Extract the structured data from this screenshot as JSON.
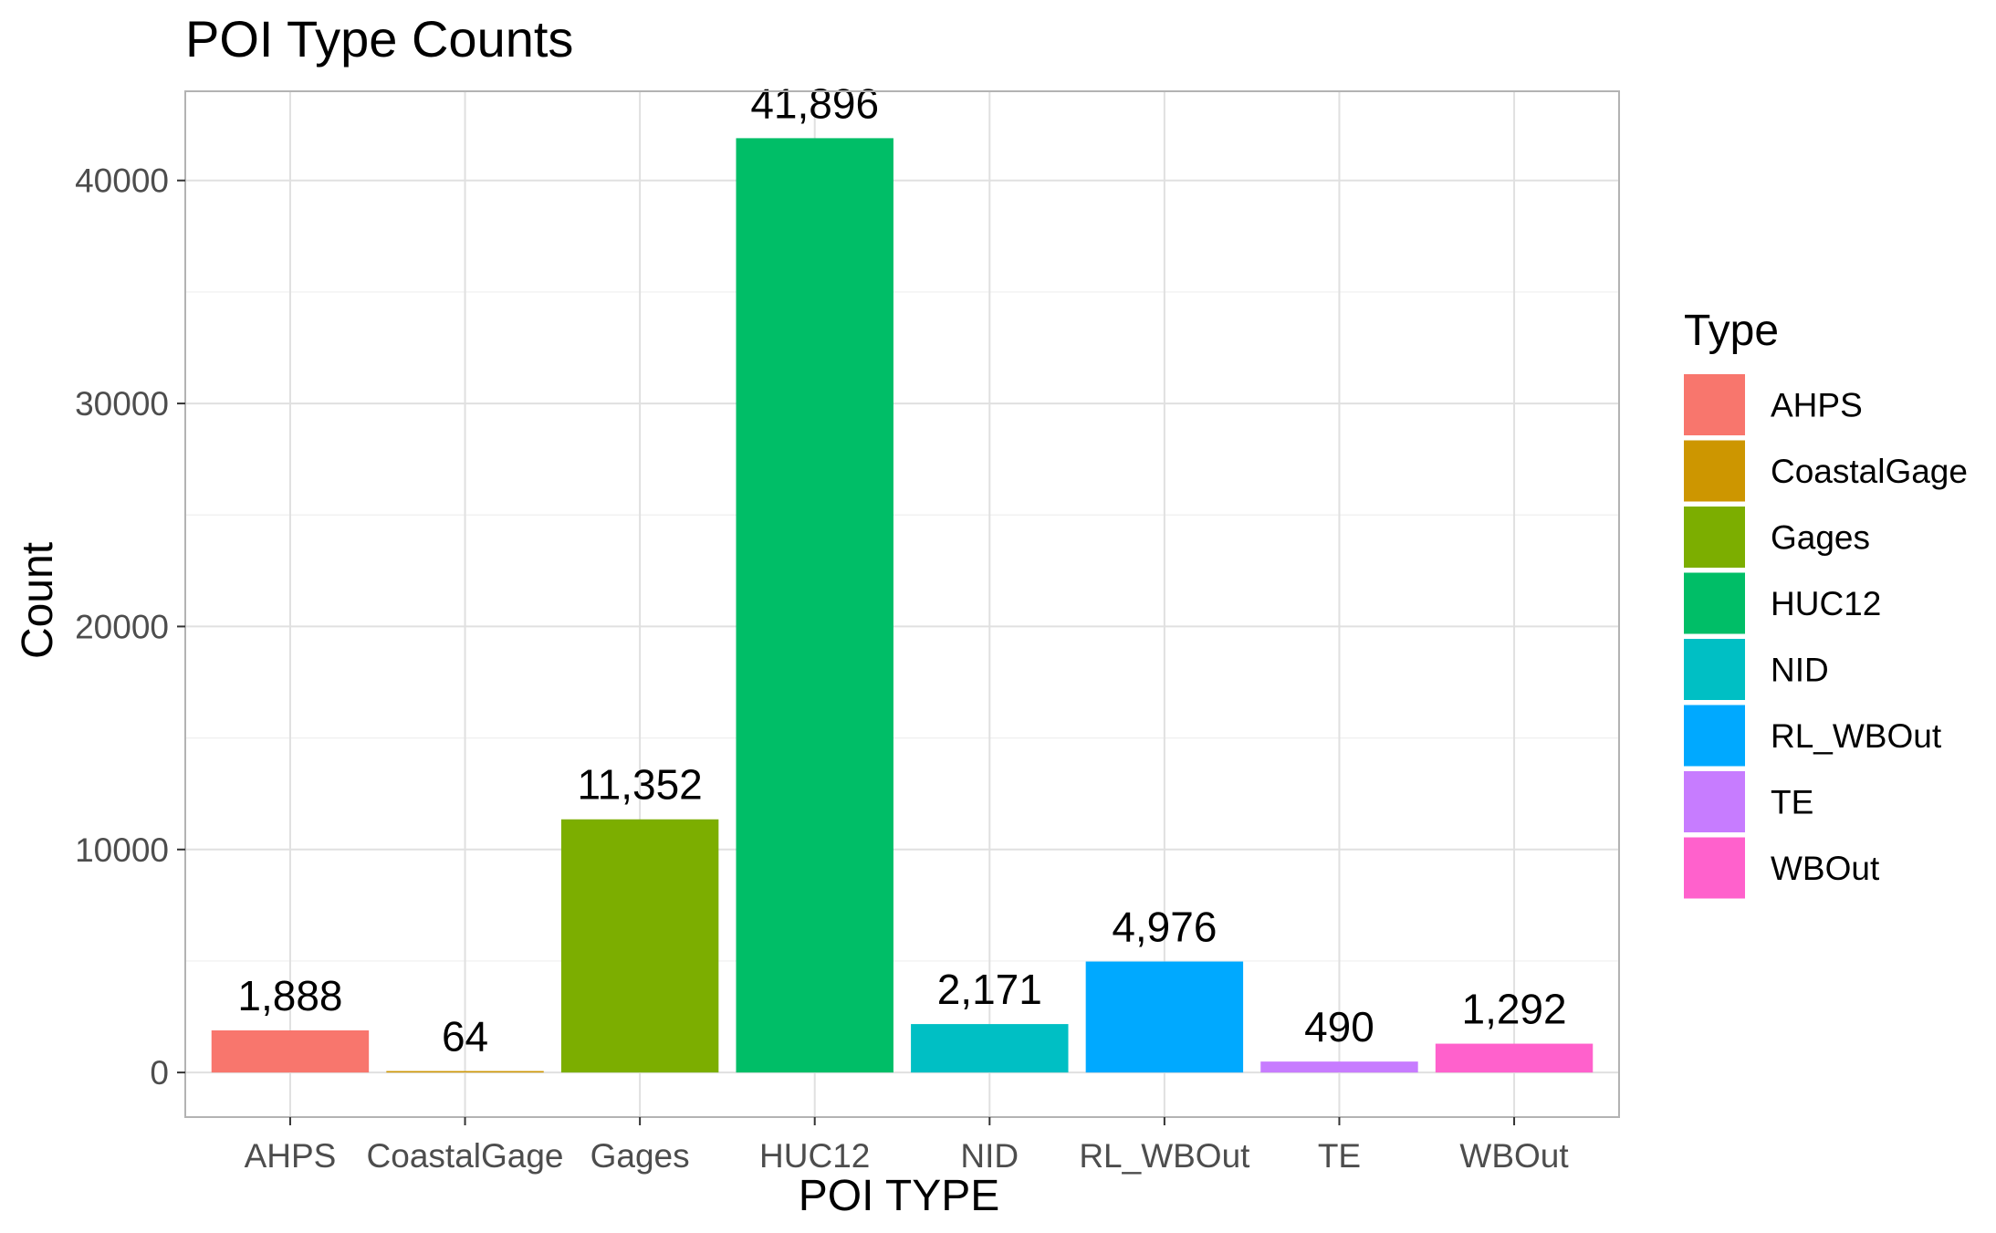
{
  "chart_data": {
    "type": "bar",
    "title": "POI Type Counts",
    "xlabel": "POI TYPE",
    "ylabel": "Count",
    "categories": [
      "AHPS",
      "CoastalGage",
      "Gages",
      "HUC12",
      "NID",
      "RL_WBOut",
      "TE",
      "WBOut"
    ],
    "values": [
      1888,
      64,
      11352,
      41896,
      2171,
      4976,
      490,
      1292
    ],
    "data_labels": [
      "1,888",
      "64",
      "11,352",
      "41,896",
      "2,171",
      "4,976",
      "490",
      "1,292"
    ],
    "colors": [
      "#F8766D",
      "#CD9600",
      "#7CAE00",
      "#00BE67",
      "#00BFC4",
      "#00A9FF",
      "#C77CFF",
      "#FF61CC"
    ],
    "yticks": [
      0,
      10000,
      20000,
      30000,
      40000
    ],
    "ytick_labels": [
      "0",
      "10000",
      "20000",
      "30000",
      "40000"
    ],
    "ylim": [
      -2000,
      44000
    ],
    "grid": true,
    "legend": {
      "title": "Type",
      "position": "right",
      "items": [
        "AHPS",
        "CoastalGage",
        "Gages",
        "HUC12",
        "NID",
        "RL_WBOut",
        "TE",
        "WBOut"
      ]
    }
  }
}
